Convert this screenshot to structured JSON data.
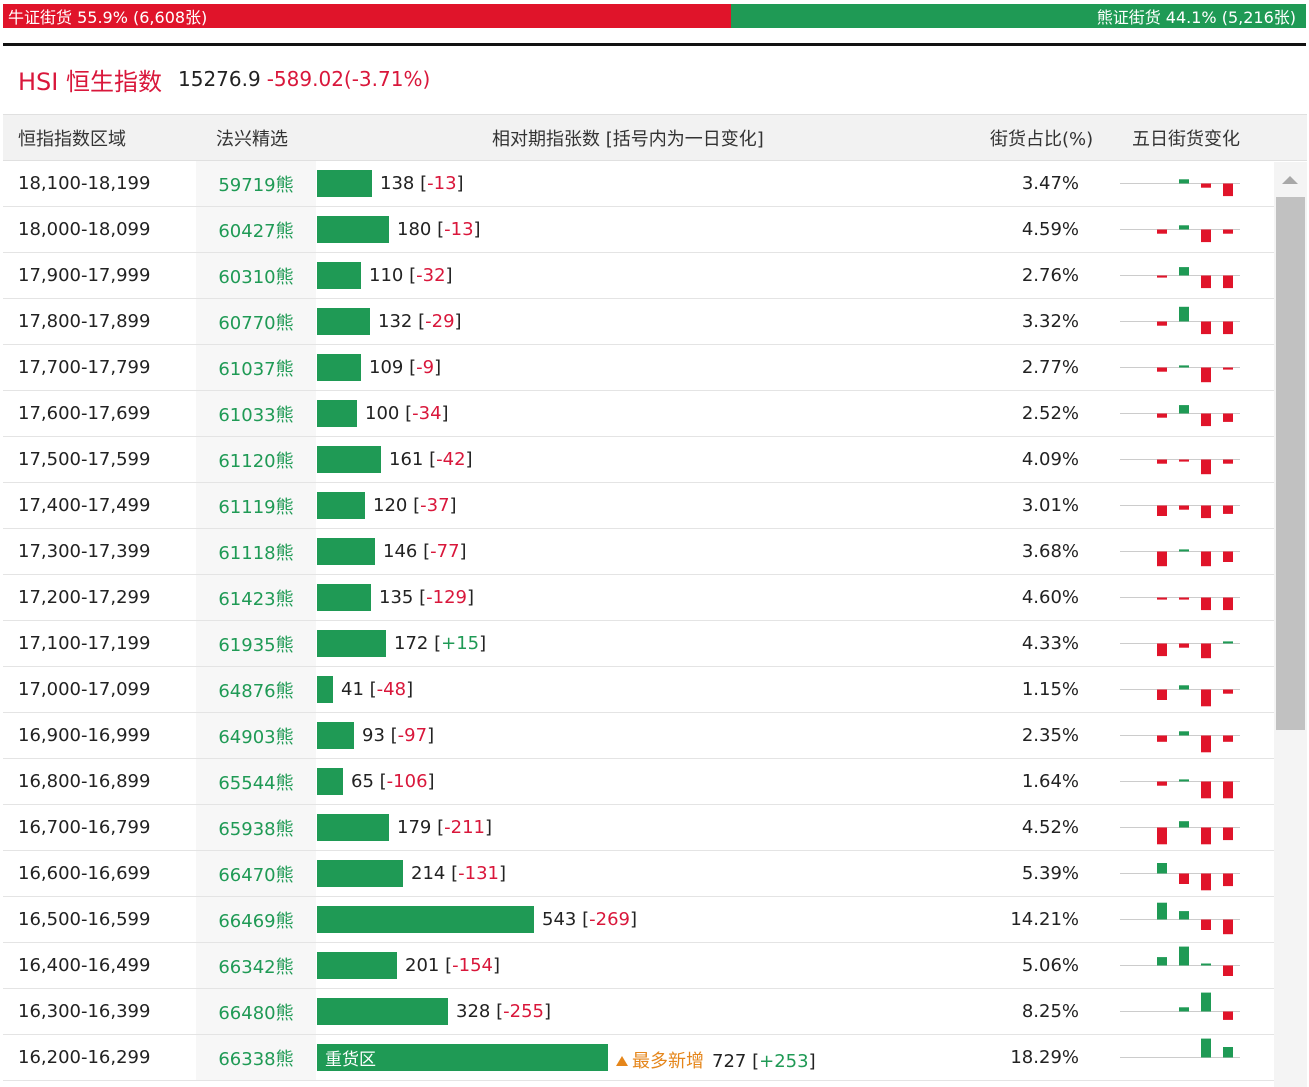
{
  "ratio": {
    "bull_label": "牛证街货 55.9% (6,608张)",
    "bear_label": "熊证街货 44.1% (5,216张)",
    "bull_pct": 55.9,
    "bear_pct": 44.1,
    "bull_color": "#e0142a",
    "bear_color": "#1f9a55"
  },
  "index": {
    "name": "HSI 恒生指数",
    "price": "15276.9",
    "change": "-589.02(-3.71%)"
  },
  "table": {
    "headers": {
      "range": "恒指指数区域",
      "pick": "法兴精选",
      "count": "相对期指张数 [括号内为一日变化]",
      "ratio": "街货占比(%)",
      "five_day": "五日街货变化"
    },
    "rows": [
      {
        "range": "18,100-18,199",
        "code": "59719熊",
        "count": 138,
        "count_label": "138",
        "open": "[",
        "delta": "-13",
        "close": "]",
        "pct": "3.47%",
        "spark": [
          0,
          0,
          1,
          -1,
          -3
        ]
      },
      {
        "range": "18,000-18,099",
        "code": "60427熊",
        "count": 180,
        "count_label": "180",
        "open": "[",
        "delta": "-13",
        "close": "]",
        "pct": "4.59%",
        "spark": [
          0,
          -1,
          1,
          -3,
          -1
        ]
      },
      {
        "range": "17,900-17,999",
        "code": "60310熊",
        "count": 110,
        "count_label": "110",
        "open": "[",
        "delta": "-32",
        "close": "]",
        "pct": "2.76%",
        "spark": [
          0,
          -0.5,
          2,
          -3,
          -3
        ]
      },
      {
        "range": "17,800-17,899",
        "code": "60770熊",
        "count": 132,
        "count_label": "132",
        "open": "[",
        "delta": "-29",
        "close": "]",
        "pct": "3.32%",
        "spark": [
          0,
          -1,
          3.5,
          -3,
          -3
        ]
      },
      {
        "range": "17,700-17,799",
        "code": "61037熊",
        "count": 109,
        "count_label": "109",
        "open": "[",
        "delta": "-9",
        "close": "]",
        "pct": "2.77%",
        "spark": [
          0,
          -1,
          0.5,
          -3.5,
          -0.5
        ]
      },
      {
        "range": "17,600-17,699",
        "code": "61033熊",
        "count": 100,
        "count_label": "100",
        "open": "[",
        "delta": "-34",
        "close": "]",
        "pct": "2.52%",
        "spark": [
          0,
          -1,
          2,
          -3,
          -2
        ]
      },
      {
        "range": "17,500-17,599",
        "code": "61120熊",
        "count": 161,
        "count_label": "161",
        "open": "[",
        "delta": "-42",
        "close": "]",
        "pct": "4.09%",
        "spark": [
          0,
          -1,
          -0.5,
          -3.5,
          -1
        ]
      },
      {
        "range": "17,400-17,499",
        "code": "61119熊",
        "count": 120,
        "count_label": "120",
        "open": "[",
        "delta": "-37",
        "close": "]",
        "pct": "3.01%",
        "spark": [
          0,
          -2.5,
          -1,
          -3,
          -2
        ]
      },
      {
        "range": "17,300-17,399",
        "code": "61118熊",
        "count": 146,
        "count_label": "146",
        "open": "[",
        "delta": "-77",
        "close": "]",
        "pct": "3.68%",
        "spark": [
          0,
          -3.5,
          0.5,
          -3.5,
          -2.5
        ]
      },
      {
        "range": "17,200-17,299",
        "code": "61423熊",
        "count": 135,
        "count_label": "135",
        "open": "[",
        "delta": "-129",
        "close": "]",
        "pct": "4.60%",
        "spark": [
          0,
          -0.5,
          -0.5,
          -3,
          -3
        ]
      },
      {
        "range": "17,100-17,199",
        "code": "61935熊",
        "count": 172,
        "count_label": "172",
        "open": "[",
        "delta": "+15",
        "close": "]",
        "pct": "4.33%",
        "spark": [
          0,
          -3,
          -1,
          -3.5,
          0.5
        ]
      },
      {
        "range": "17,000-17,099",
        "code": "64876熊",
        "count": 41,
        "count_label": "41",
        "open": "[",
        "delta": "-48",
        "close": "]",
        "pct": "1.15%",
        "spark": [
          0,
          -2.5,
          1,
          -4,
          -1
        ]
      },
      {
        "range": "16,900-16,999",
        "code": "64903熊",
        "count": 93,
        "count_label": "93",
        "open": "[",
        "delta": "-97",
        "close": "]",
        "pct": "2.35%",
        "spark": [
          0,
          -1.5,
          1,
          -4,
          -1.5
        ]
      },
      {
        "range": "16,800-16,899",
        "code": "65544熊",
        "count": 65,
        "count_label": "65",
        "open": "[",
        "delta": "-106",
        "close": "]",
        "pct": "1.64%",
        "spark": [
          0,
          -1,
          0.5,
          -4,
          -4
        ]
      },
      {
        "range": "16,700-16,799",
        "code": "65938熊",
        "count": 179,
        "count_label": "179",
        "open": "[",
        "delta": "-211",
        "close": "]",
        "pct": "4.52%",
        "spark": [
          0,
          -4,
          1.5,
          -4,
          -3
        ]
      },
      {
        "range": "16,600-16,699",
        "code": "66470熊",
        "count": 214,
        "count_label": "214",
        "open": "[",
        "delta": "-131",
        "close": "]",
        "pct": "5.39%",
        "spark": [
          0,
          2.5,
          -2.5,
          -4,
          -3
        ]
      },
      {
        "range": "16,500-16,599",
        "code": "66469熊",
        "count": 543,
        "count_label": "543",
        "open": "[",
        "delta": "-269",
        "close": "]",
        "pct": "14.21%",
        "spark": [
          0,
          4,
          2,
          -2.5,
          -3.5
        ]
      },
      {
        "range": "16,400-16,499",
        "code": "66342熊",
        "count": 201,
        "count_label": "201",
        "open": "[",
        "delta": "-154",
        "close": "]",
        "pct": "5.06%",
        "spark": [
          0,
          2,
          4.5,
          0.3,
          -2.5
        ]
      },
      {
        "range": "16,300-16,399",
        "code": "66480熊",
        "count": 328,
        "count_label": "328",
        "open": "[",
        "delta": "-255",
        "close": "]",
        "pct": "8.25%",
        "spark": [
          0,
          0,
          1,
          4.5,
          -2
        ]
      },
      {
        "range": "16,200-16,299",
        "code": "66338熊",
        "count": 727,
        "count_label": "727",
        "open": "[",
        "delta": "+253",
        "close": "]",
        "pct": "18.29%",
        "bar_label": "重货区",
        "note": "最多新增",
        "spark": [
          0,
          0,
          0,
          4.5,
          2.5
        ]
      }
    ]
  },
  "colors": {
    "up": "#1f9a55",
    "down": "#e0142a",
    "text_neg": "#d9173b"
  }
}
